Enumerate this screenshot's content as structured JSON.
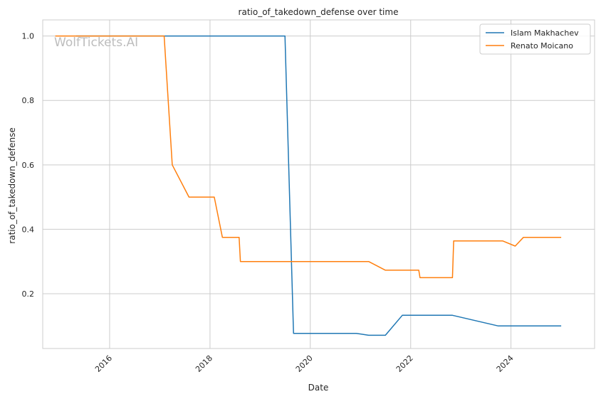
{
  "chart_data": {
    "type": "line",
    "title": "ratio_of_takedown_defense over time",
    "xlabel": "Date",
    "ylabel": "ratio_of_takedown_defense",
    "watermark": "WolfTickets.AI",
    "xlim": [
      "2014-09-01",
      "2025-09-01"
    ],
    "ylim": [
      0.03,
      1.05
    ],
    "x_ticks": [
      "2016",
      "2018",
      "2020",
      "2022",
      "2024"
    ],
    "y_ticks": [
      "0.2",
      "0.4",
      "0.6",
      "0.8",
      "1.0"
    ],
    "grid": true,
    "legend_position": "top-right",
    "series": [
      {
        "name": "Islam Makhachev",
        "color": "#1f77b4",
        "points": [
          [
            "2015-05-01",
            1.0
          ],
          [
            "2016-04-01",
            1.0
          ],
          [
            "2017-06-01",
            1.0
          ],
          [
            "2018-06-01",
            1.0
          ],
          [
            "2019-07-01",
            1.0
          ],
          [
            "2019-09-01",
            0.077
          ],
          [
            "2020-12-01",
            0.077
          ],
          [
            "2021-03-01",
            0.071
          ],
          [
            "2021-07-01",
            0.071
          ],
          [
            "2021-11-01",
            0.133
          ],
          [
            "2022-11-01",
            0.133
          ],
          [
            "2023-10-01",
            0.1
          ],
          [
            "2025-01-01",
            0.1
          ]
        ]
      },
      {
        "name": "Renato Moicano",
        "color": "#ff7f0e",
        "points": [
          [
            "2014-12-01",
            1.0
          ],
          [
            "2016-01-01",
            1.0
          ],
          [
            "2017-02-01",
            1.0
          ],
          [
            "2017-04-01",
            0.6
          ],
          [
            "2017-08-01",
            0.5
          ],
          [
            "2018-02-01",
            0.5
          ],
          [
            "2018-04-01",
            0.375
          ],
          [
            "2018-08-01",
            0.375
          ],
          [
            "2018-08-10",
            0.3
          ],
          [
            "2021-03-01",
            0.3
          ],
          [
            "2021-07-01",
            0.273
          ],
          [
            "2022-03-01",
            0.273
          ],
          [
            "2022-03-10",
            0.25
          ],
          [
            "2022-11-01",
            0.25
          ],
          [
            "2022-11-10",
            0.364
          ],
          [
            "2023-11-01",
            0.364
          ],
          [
            "2024-02-01",
            0.348
          ],
          [
            "2024-04-01",
            0.375
          ],
          [
            "2025-01-01",
            0.375
          ]
        ]
      }
    ]
  }
}
